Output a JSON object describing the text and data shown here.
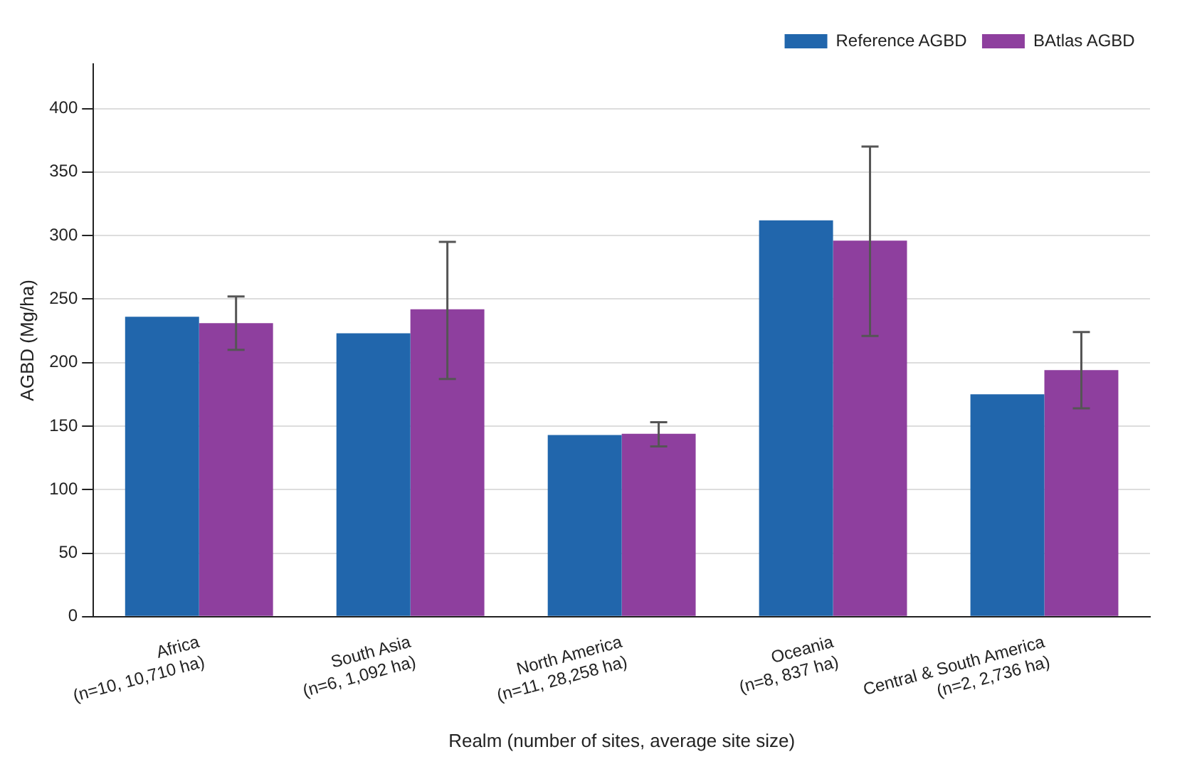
{
  "chart_data": {
    "type": "bar",
    "xlabel": "Realm (number of sites, average site size)",
    "ylabel": "AGBD (Mg/ha)",
    "categories": [
      "Africa\n(n=10, 10,710 ha)",
      "South Asia\n(n=6, 1,092 ha)",
      "North America\n(n=11, 28,258 ha)",
      "Oceania\n(n=8, 837 ha)",
      "Central & South America\n(n=2, 2,736 ha)"
    ],
    "series": [
      {
        "name": "Reference AGBD",
        "color": "#2166ac",
        "values": [
          236,
          223,
          143,
          312,
          175
        ]
      },
      {
        "name": "BAtlas AGBD",
        "color": "#8e3f9e",
        "values": [
          231,
          242,
          144,
          296,
          194
        ],
        "errors": [
          [
            210,
            252
          ],
          [
            187,
            295
          ],
          [
            134,
            153
          ],
          [
            221,
            370
          ],
          [
            164,
            224
          ]
        ]
      }
    ],
    "ylim": [
      0,
      435
    ],
    "yticks": [
      0,
      50,
      100,
      150,
      200,
      250,
      300,
      350,
      400
    ],
    "grid": "y",
    "legend": "top right"
  }
}
